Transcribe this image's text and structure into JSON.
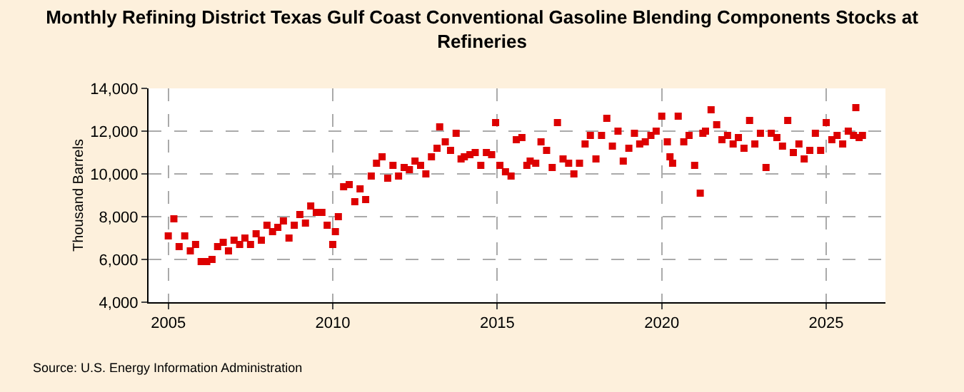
{
  "chart_data": {
    "type": "scatter",
    "title": "Monthly Refining District Texas Gulf Coast Conventional Gasoline Blending Components Stocks at Refineries",
    "ylabel": "Thousand Barrels",
    "annotations": [
      "Source: U.S. Energy Information Administration"
    ],
    "x": [
      2005.0,
      2005.17,
      2005.33,
      2005.5,
      2005.67,
      2005.83,
      2006.0,
      2006.17,
      2006.33,
      2006.5,
      2006.67,
      2006.83,
      2007.0,
      2007.17,
      2007.33,
      2007.5,
      2007.67,
      2007.83,
      2008.0,
      2008.17,
      2008.33,
      2008.5,
      2008.67,
      2008.83,
      2009.0,
      2009.17,
      2009.33,
      2009.5,
      2009.67,
      2009.83,
      2010.0,
      2010.08,
      2010.17,
      2010.33,
      2010.5,
      2010.67,
      2010.83,
      2011.0,
      2011.17,
      2011.33,
      2011.5,
      2011.67,
      2011.83,
      2012.0,
      2012.17,
      2012.33,
      2012.5,
      2012.67,
      2012.83,
      2013.0,
      2013.17,
      2013.25,
      2013.42,
      2013.58,
      2013.75,
      2013.9,
      2014.0,
      2014.17,
      2014.33,
      2014.5,
      2014.67,
      2014.83,
      2014.95,
      2015.08,
      2015.25,
      2015.42,
      2015.58,
      2015.75,
      2015.9,
      2016.0,
      2016.17,
      2016.33,
      2016.5,
      2016.67,
      2016.83,
      2017.0,
      2017.17,
      2017.33,
      2017.5,
      2017.67,
      2017.83,
      2018.0,
      2018.17,
      2018.33,
      2018.5,
      2018.67,
      2018.83,
      2019.0,
      2019.17,
      2019.33,
      2019.5,
      2019.67,
      2019.83,
      2020.0,
      2020.17,
      2020.25,
      2020.33,
      2020.5,
      2020.67,
      2020.83,
      2021.0,
      2021.17,
      2021.25,
      2021.33,
      2021.5,
      2021.67,
      2021.83,
      2022.0,
      2022.17,
      2022.33,
      2022.5,
      2022.67,
      2022.83,
      2023.0,
      2023.17,
      2023.33,
      2023.5,
      2023.67,
      2023.83,
      2024.0,
      2024.17,
      2024.33,
      2024.5,
      2024.67,
      2024.83,
      2025.0,
      2025.17,
      2025.33,
      2025.5,
      2025.67,
      2025.83,
      2025.9,
      2026.0,
      2026.1
    ],
    "series": [
      {
        "color": "#dd0000",
        "values": [
          7100,
          7900,
          6600,
          7100,
          6400,
          6700,
          5900,
          5900,
          6000,
          6600,
          6800,
          6400,
          6900,
          6700,
          7000,
          6700,
          7200,
          6900,
          7600,
          7300,
          7500,
          7800,
          7000,
          7600,
          8100,
          7700,
          8500,
          8200,
          8200,
          7600,
          6700,
          7300,
          8000,
          9400,
          9500,
          8700,
          9300,
          8800,
          9900,
          10500,
          10800,
          9800,
          10400,
          9900,
          10300,
          10200,
          10600,
          10400,
          10000,
          10800,
          11200,
          12200,
          11500,
          11100,
          11900,
          10700,
          10800,
          10900,
          11000,
          10400,
          11000,
          10900,
          12400,
          10400,
          10100,
          9900,
          11600,
          11700,
          10400,
          10600,
          10500,
          11500,
          11100,
          10300,
          12400,
          10700,
          10500,
          10000,
          10500,
          11400,
          11800,
          10700,
          11800,
          12600,
          11300,
          12000,
          10600,
          11200,
          11900,
          11400,
          11500,
          11800,
          12000,
          12700,
          11500,
          10800,
          10500,
          12700,
          11500,
          11800,
          10400,
          9100,
          11900,
          12000,
          13000,
          12300,
          11600,
          11800,
          11400,
          11700,
          11200,
          12500,
          11400,
          11900,
          10300,
          11900,
          11700,
          11300,
          12500,
          11000,
          11400,
          10700,
          11100,
          11900,
          11100,
          12400,
          11600,
          11800,
          11400,
          12000,
          11800,
          13100,
          11700,
          11800
        ]
      }
    ],
    "xlim": [
      2004.4,
      2026.8
    ],
    "xticks": [
      2005,
      2010,
      2015,
      2020,
      2025
    ],
    "ylim": [
      4000,
      14000
    ],
    "yticks": [
      {
        "value": 4000,
        "label": "4,000"
      },
      {
        "value": 6000,
        "label": "6,000"
      },
      {
        "value": 8000,
        "label": "8,000"
      },
      {
        "value": 10000,
        "label": "10,000"
      },
      {
        "value": 12000,
        "label": "12,000"
      },
      {
        "value": 14000,
        "label": "14,000"
      }
    ],
    "grid": true,
    "marker": "square"
  }
}
